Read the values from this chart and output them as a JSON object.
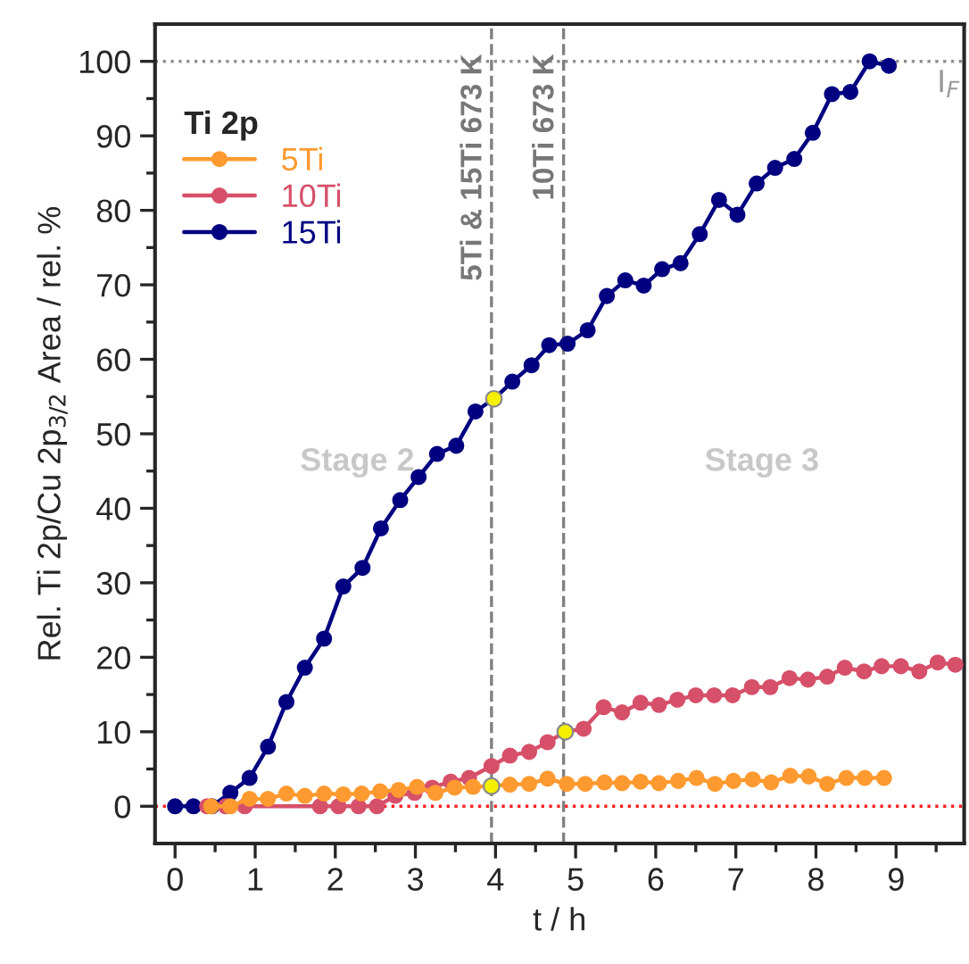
{
  "chart_data": {
    "type": "line",
    "xlabel": "t / h",
    "ylabel": "Rel. Ti 2p/Cu 2p$_{3/2}$ Area / rel. %",
    "legend_title": "Ti 2p",
    "xlim": [
      -0.25,
      9.85
    ],
    "xticks": [
      0,
      1,
      2,
      3,
      4,
      5,
      6,
      7,
      8,
      9
    ],
    "ylim": [
      -5,
      105
    ],
    "yticks": [
      0,
      10,
      20,
      30,
      40,
      50,
      60,
      70,
      80,
      90,
      100
    ],
    "grid": false,
    "legend": "top left",
    "marker": "circle",
    "line_style": "solid",
    "series": [
      {
        "name": "5Ti",
        "color": "#ff9a30",
        "x": [
          0.45,
          0.69,
          0.93,
          1.16,
          1.39,
          1.62,
          1.86,
          2.1,
          2.33,
          2.56,
          2.79,
          3.02,
          3.25,
          3.49,
          3.72,
          3.95,
          4.18,
          4.42,
          4.65,
          4.89,
          5.12,
          5.36,
          5.58,
          5.81,
          6.04,
          6.28,
          6.51,
          6.74,
          6.97,
          7.21,
          7.44,
          7.68,
          7.91,
          8.14,
          8.38,
          8.61,
          8.85
        ],
        "values": [
          0,
          0,
          1.0,
          1.0,
          1.7,
          1.4,
          1.7,
          1.6,
          1.7,
          2.0,
          2.2,
          2.6,
          1.8,
          2.5,
          2.6,
          2.7,
          2.9,
          3.0,
          3.7,
          3.0,
          3.0,
          3.2,
          3.1,
          3.3,
          3.1,
          3.4,
          3.8,
          3.0,
          3.4,
          3.6,
          3.2,
          4.1,
          4.0,
          3.0,
          3.8,
          3.8,
          3.8
        ]
      },
      {
        "name": "10Ti",
        "color": "#d6506a",
        "x": [
          0.4,
          0.63,
          0.87,
          1.81,
          2.04,
          2.29,
          2.52,
          2.75,
          2.99,
          3.21,
          3.44,
          3.67,
          3.95,
          4.18,
          4.42,
          4.65,
          4.87,
          5.1,
          5.35,
          5.58,
          5.81,
          6.04,
          6.27,
          6.5,
          6.73,
          6.96,
          7.2,
          7.43,
          7.67,
          7.9,
          8.14,
          8.36,
          8.6,
          8.82,
          9.06,
          9.29,
          9.52,
          9.74
        ],
        "values": [
          0,
          0,
          0,
          0,
          0,
          0,
          0,
          1.4,
          1.8,
          2.5,
          3.3,
          3.8,
          5.4,
          6.8,
          7.3,
          8.6,
          10.0,
          10.4,
          13.3,
          12.6,
          13.9,
          13.6,
          14.3,
          14.9,
          14.9,
          14.9,
          16.0,
          16.0,
          17.2,
          17.0,
          17.4,
          18.6,
          18.1,
          18.8,
          18.8,
          18.1,
          19.3,
          19.0
        ]
      },
      {
        "name": "15Ti",
        "color": "#000080",
        "x": [
          0,
          0.23,
          0.46,
          0.69,
          0.93,
          1.16,
          1.39,
          1.62,
          1.86,
          2.1,
          2.34,
          2.57,
          2.81,
          3.04,
          3.27,
          3.51,
          3.75,
          3.98,
          4.21,
          4.45,
          4.67,
          4.9,
          5.15,
          5.39,
          5.62,
          5.85,
          6.08,
          6.31,
          6.55,
          6.79,
          7.02,
          7.26,
          7.49,
          7.73,
          7.96,
          8.2,
          8.43,
          8.67,
          8.91
        ],
        "values": [
          0,
          0,
          0,
          1.8,
          3.8,
          8.0,
          14.0,
          18.6,
          22.5,
          29.5,
          32.0,
          37.3,
          41.1,
          44.2,
          47.3,
          48.4,
          53.0,
          54.7,
          57.0,
          59.2,
          61.9,
          62.1,
          63.9,
          68.5,
          70.6,
          69.9,
          72.1,
          72.9,
          76.8,
          81.4,
          79.4,
          83.6,
          85.7,
          86.9,
          90.4,
          95.6,
          95.9,
          100,
          99.4
        ]
      },
      {
        "type": "scatter",
        "color": "#f5f000",
        "x": [
          3.95,
          3.98,
          4.87
        ],
        "values": [
          2.7,
          54.7,
          10.0
        ]
      }
    ],
    "ref_lines": [
      {
        "axis": "x",
        "value": 3.95,
        "label": "5Ti & 15Ti 673 K",
        "color": "#808080",
        "line_style": "dashed"
      },
      {
        "axis": "x",
        "value": 4.85,
        "label": "10Ti 673 K",
        "color": "#808080",
        "line_style": "dashed"
      },
      {
        "axis": "y",
        "value": 100,
        "label": "I$_{F}$",
        "color": "#909090",
        "line_style": "dotted"
      },
      {
        "axis": "y",
        "value": 0,
        "color": "#ff2020",
        "line_style": "dotted"
      }
    ],
    "annotations": [
      "Stage 2",
      "Stage 3"
    ]
  }
}
